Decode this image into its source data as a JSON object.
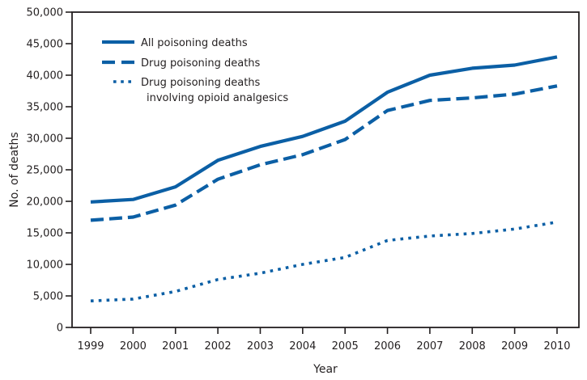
{
  "chart_data": {
    "type": "line",
    "title": "",
    "xlabel": "Year",
    "ylabel": "No. of deaths",
    "x": [
      1999,
      2000,
      2001,
      2002,
      2003,
      2004,
      2005,
      2006,
      2007,
      2008,
      2009,
      2010
    ],
    "x_tick_labels": [
      "1999",
      "2000",
      "2001",
      "2002",
      "2003",
      "2004",
      "2005",
      "2006",
      "2007",
      "2008",
      "2009",
      "2010"
    ],
    "ylim": [
      0,
      50000
    ],
    "y_ticks": [
      0,
      5000,
      10000,
      15000,
      20000,
      25000,
      30000,
      35000,
      40000,
      45000,
      50000
    ],
    "y_tick_labels": [
      "0",
      "5,000",
      "10,000",
      "15,000",
      "20,000",
      "25,000",
      "30,000",
      "35,000",
      "40,000",
      "45,000",
      "50,000"
    ],
    "grid": false,
    "legend_position": "top-left",
    "series": [
      {
        "name": "All poisoning deaths",
        "style": "solid",
        "color": "#0b5fa5",
        "values": [
          19900,
          20300,
          22300,
          26500,
          28700,
          30300,
          32700,
          37300,
          40000,
          41100,
          41600,
          42900
        ]
      },
      {
        "name": "Drug poisoning deaths",
        "style": "dashed",
        "color": "#0b5fa5",
        "values": [
          17000,
          17500,
          19400,
          23500,
          25800,
          27400,
          29800,
          34400,
          36000,
          36400,
          37000,
          38300
        ]
      },
      {
        "name": "Drug poisoning deaths involving opioid analgesics",
        "legend_lines": [
          "Drug poisoning deaths",
          "involving opioid analgesics"
        ],
        "style": "dotted",
        "color": "#0b5fa5",
        "values": [
          4200,
          4500,
          5700,
          7600,
          8600,
          10000,
          11100,
          13800,
          14500,
          14900,
          15600,
          16700
        ]
      }
    ]
  }
}
